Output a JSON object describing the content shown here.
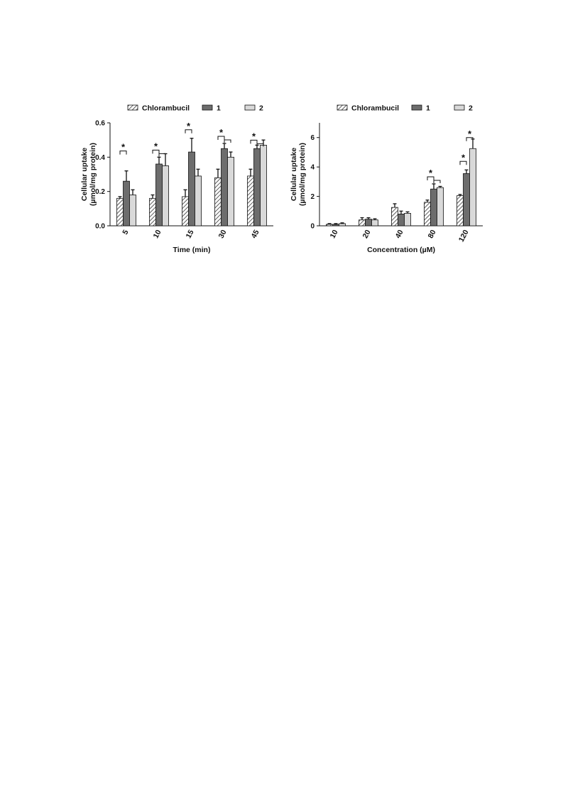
{
  "legend_items": [
    "Chlorambucil",
    "1",
    "2"
  ],
  "colors": {
    "chlorambucil": "#cfcfcf",
    "compound1": "#6d6d6d",
    "compound2": "#d9d9d9",
    "stroke": "#111111"
  },
  "chart_data": [
    {
      "type": "bar",
      "categories": [
        "5",
        "10",
        "15",
        "30",
        "45"
      ],
      "series": [
        {
          "name": "Chlorambucil",
          "values": [
            0.16,
            0.16,
            0.17,
            0.28,
            0.29
          ],
          "errors": [
            0.01,
            0.02,
            0.04,
            0.05,
            0.04
          ]
        },
        {
          "name": "1",
          "values": [
            0.26,
            0.36,
            0.43,
            0.45,
            0.45
          ],
          "errors": [
            0.06,
            0.04,
            0.08,
            0.03,
            0.02
          ]
        },
        {
          "name": "2",
          "values": [
            0.18,
            0.35,
            0.29,
            0.4,
            0.47
          ],
          "errors": [
            0.03,
            0.07,
            0.04,
            0.03,
            0.03
          ]
        }
      ],
      "xlabel": "Time (min)",
      "ylabel": "Cellular uptake",
      "ylabel_line2": "(µmol/mg protein)",
      "ylim": [
        0,
        0.6
      ],
      "yticks": [
        "0.0",
        "0.2",
        "0.4",
        "0.6"
      ],
      "significance_marker": "*",
      "legend": "top"
    },
    {
      "type": "bar",
      "categories": [
        "10",
        "20",
        "40",
        "80",
        "120"
      ],
      "series": [
        {
          "name": "Chlorambucil",
          "values": [
            0.1,
            0.4,
            1.25,
            1.6,
            2.05
          ],
          "errors": [
            0.05,
            0.15,
            0.25,
            0.15,
            0.08
          ]
        },
        {
          "name": "1",
          "values": [
            0.1,
            0.45,
            0.8,
            2.5,
            3.55
          ],
          "errors": [
            0.05,
            0.1,
            0.2,
            0.35,
            0.25
          ]
        },
        {
          "name": "2",
          "values": [
            0.15,
            0.4,
            0.85,
            2.6,
            5.25
          ],
          "errors": [
            0.05,
            0.08,
            0.1,
            0.08,
            0.65
          ]
        }
      ],
      "xlabel": "Concentration (µM)",
      "ylabel": "Cellular uptake",
      "ylabel_line2": "(µmol/mg protein)",
      "ylim": [
        0,
        7
      ],
      "yticks": [
        "0",
        "2",
        "4",
        "6"
      ],
      "significance_marker": "*",
      "legend": "top"
    }
  ]
}
